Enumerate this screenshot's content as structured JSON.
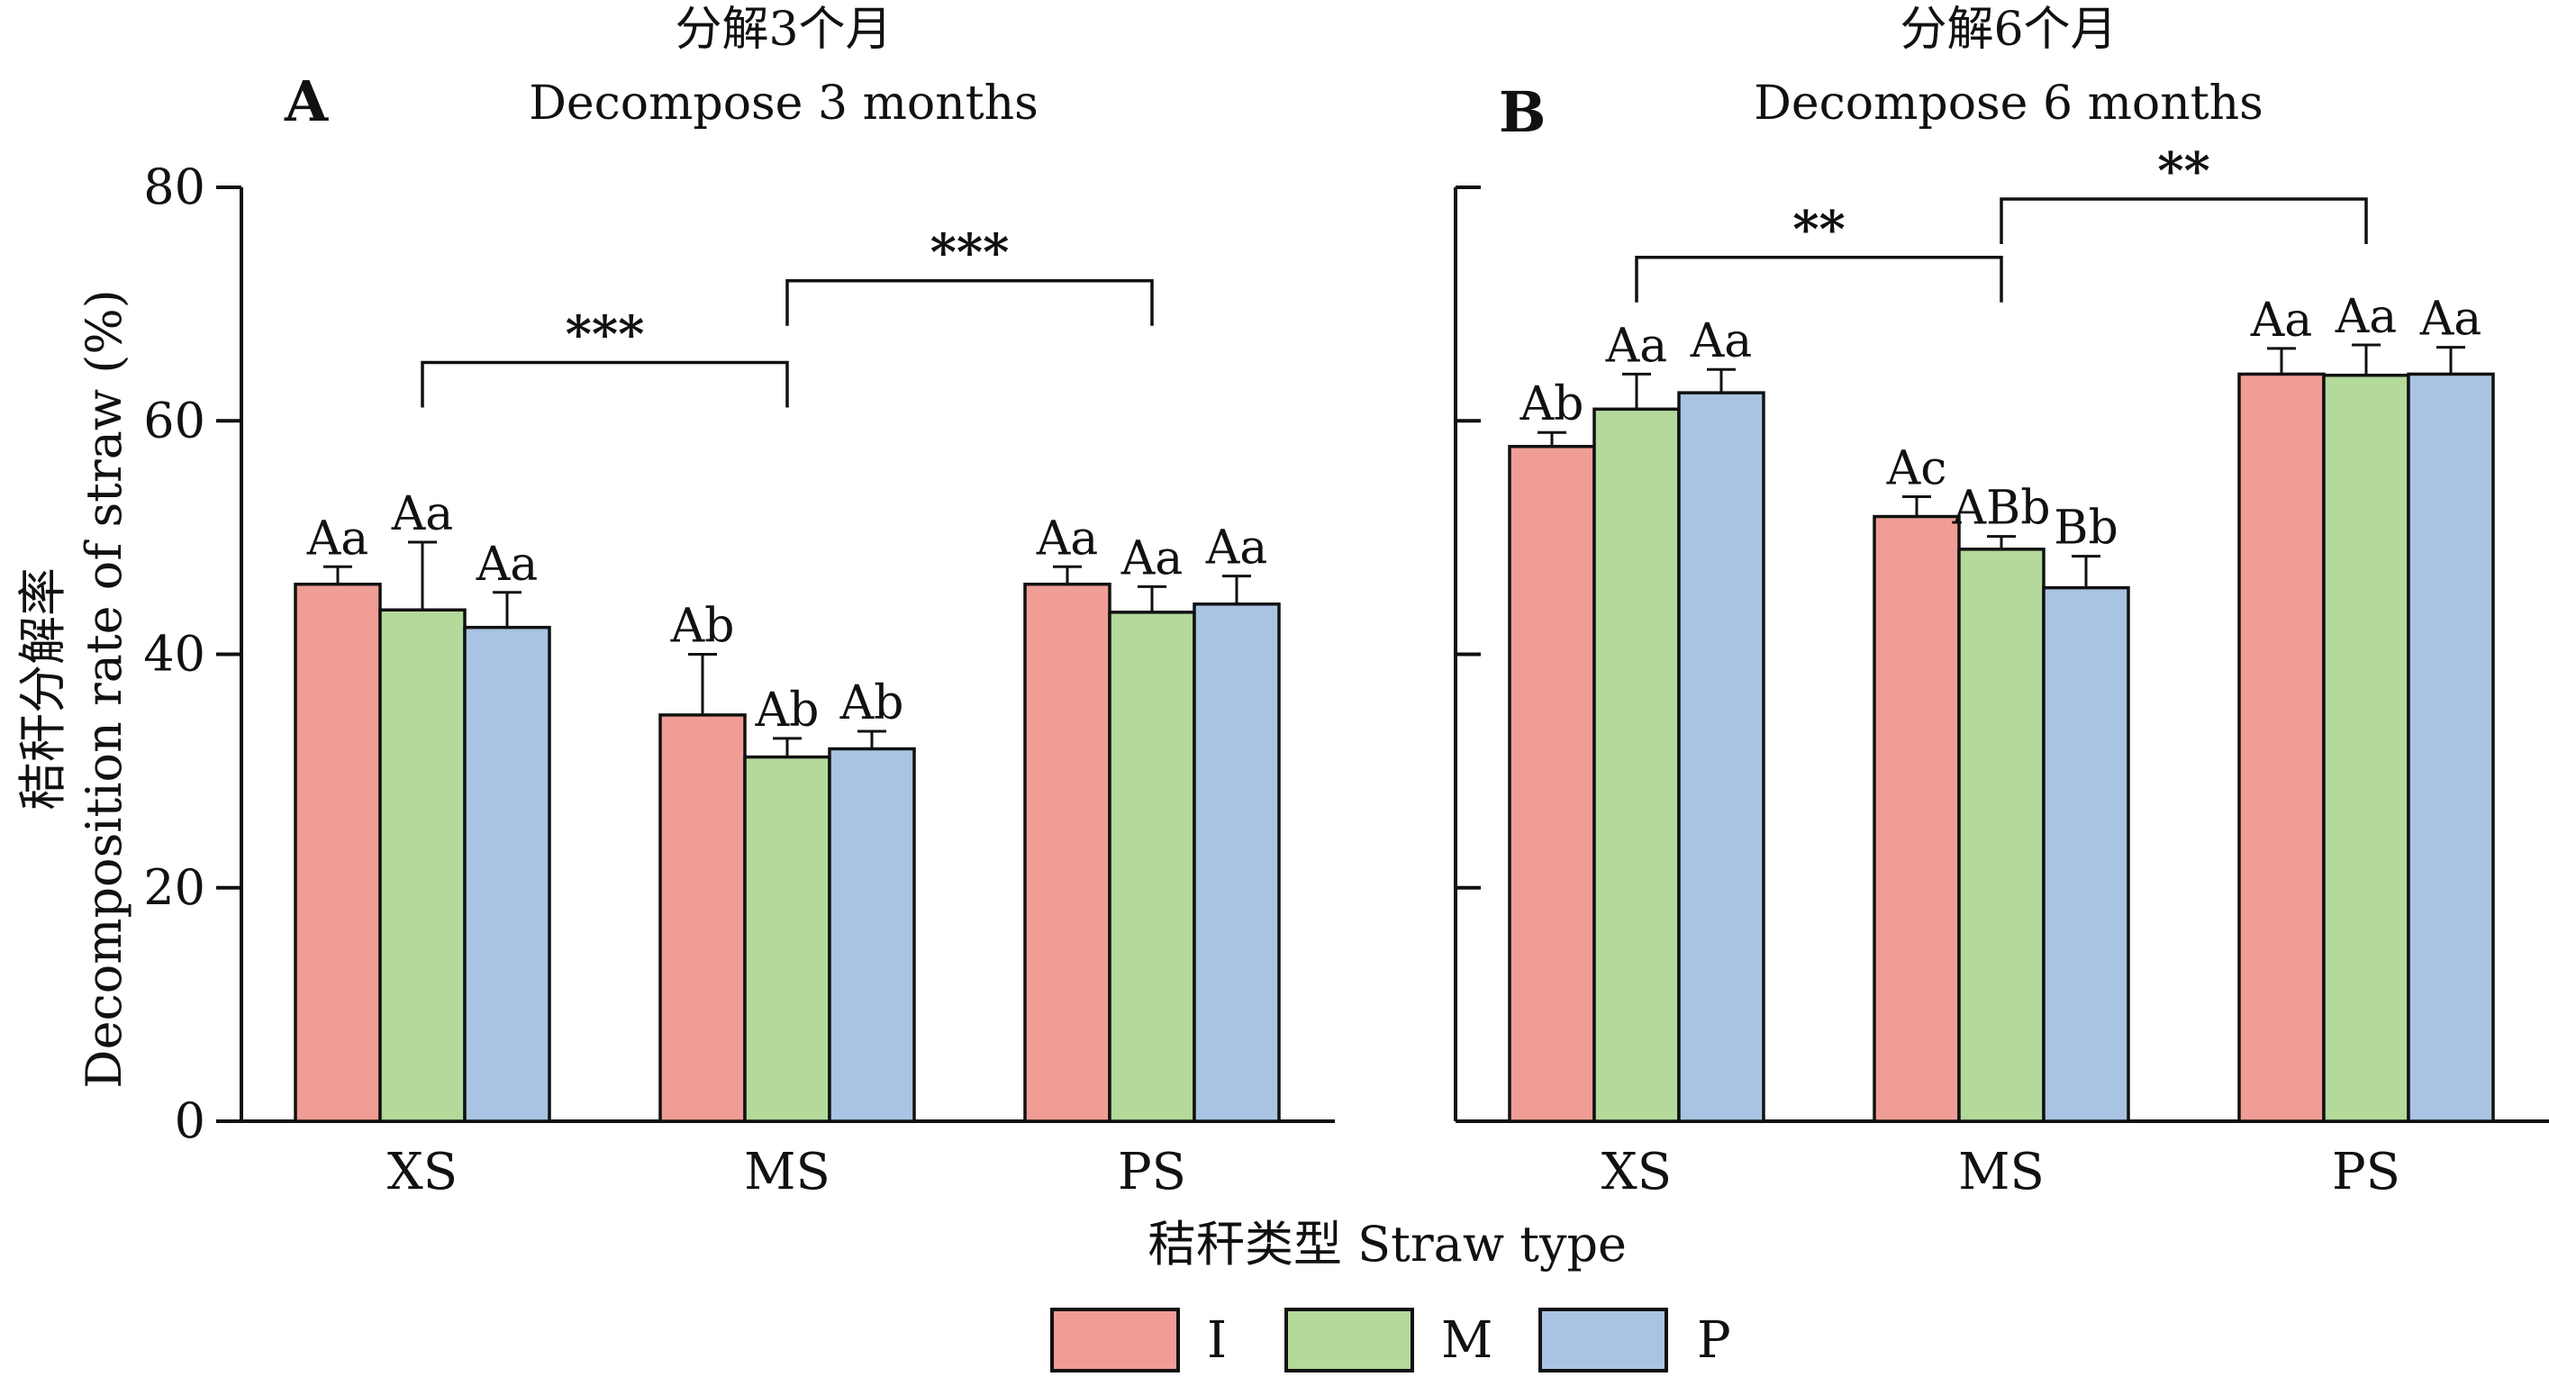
{
  "x_axis_title": "秸秆类型 Straw type",
  "y_axis_title_zh": "秸秆分解率",
  "y_axis_title_en": "Decomposition rate of straw (%)",
  "colors": {
    "I": "#f09d95",
    "M": "#b3d99b",
    "P": "#a9c4e3",
    "axis": "#111111"
  },
  "legend": [
    {
      "key": "I",
      "label": "I"
    },
    {
      "key": "M",
      "label": "M"
    },
    {
      "key": "P",
      "label": "P"
    }
  ],
  "chart_data": [
    {
      "type": "bar",
      "panel": "A",
      "title_zh": "分解3个月",
      "title_en": "Decompose 3 months",
      "categories": [
        "XS",
        "MS",
        "PS"
      ],
      "ylim": [
        0,
        80
      ],
      "yticks": [
        0,
        20,
        40,
        60,
        80
      ],
      "ytick_labels": true,
      "series": [
        {
          "name": "I",
          "values": [
            46.0,
            34.8,
            46.0
          ],
          "errors": [
            1.5,
            5.2,
            1.5
          ],
          "labels": [
            "Aa",
            "Ab",
            "Aa"
          ]
        },
        {
          "name": "M",
          "values": [
            43.8,
            31.2,
            43.6
          ],
          "errors": [
            5.8,
            1.6,
            2.2
          ],
          "labels": [
            "Aa",
            "Ab",
            "Aa"
          ]
        },
        {
          "name": "P",
          "values": [
            42.3,
            31.9,
            44.3
          ],
          "errors": [
            3.0,
            1.5,
            2.4
          ],
          "labels": [
            "Aa",
            "Ab",
            "Aa"
          ]
        }
      ],
      "significance": [
        {
          "from": "XS",
          "to": "MS",
          "height": 65,
          "label": "***"
        },
        {
          "from": "MS",
          "to": "PS",
          "height": 72,
          "label": "***"
        }
      ]
    },
    {
      "type": "bar",
      "panel": "B",
      "title_zh": "分解6个月",
      "title_en": "Decompose 6 months",
      "categories": [
        "XS",
        "MS",
        "PS"
      ],
      "ylim": [
        0,
        80
      ],
      "yticks": [
        0,
        20,
        40,
        60,
        80
      ],
      "ytick_labels": false,
      "series": [
        {
          "name": "I",
          "values": [
            57.8,
            51.8,
            64.0
          ],
          "errors": [
            1.2,
            1.7,
            2.2
          ],
          "labels": [
            "Ab",
            "Ac",
            "Aa"
          ]
        },
        {
          "name": "M",
          "values": [
            61.0,
            49.0,
            63.9
          ],
          "errors": [
            3.0,
            1.1,
            2.6
          ],
          "labels": [
            "Aa",
            "ABb",
            "Aa"
          ]
        },
        {
          "name": "P",
          "values": [
            62.4,
            45.7,
            64.0
          ],
          "errors": [
            2.0,
            2.7,
            2.3
          ],
          "labels": [
            "Aa",
            "Bb",
            "Aa"
          ]
        }
      ],
      "significance": [
        {
          "from": "XS",
          "to": "MS",
          "height": 74,
          "label": "**"
        },
        {
          "from": "MS",
          "to": "PS",
          "height": 79,
          "label": "**"
        }
      ]
    }
  ]
}
